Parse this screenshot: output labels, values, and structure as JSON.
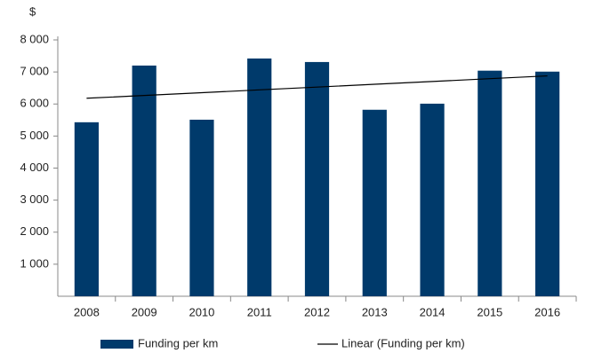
{
  "chart_data": {
    "type": "bar",
    "y_label": "$",
    "categories": [
      "2008",
      "2009",
      "2010",
      "2011",
      "2012",
      "2013",
      "2014",
      "2015",
      "2016"
    ],
    "series": [
      {
        "name": "Funding per km",
        "color": "#003a6b",
        "values": [
          5430,
          7200,
          5510,
          7420,
          7310,
          5820,
          6010,
          7040,
          7010
        ]
      },
      {
        "name": "Linear (Funding per km)",
        "color": "#000000",
        "type": "line",
        "values": [
          6179,
          6266,
          6353,
          6441,
          6528,
          6615,
          6703,
          6790,
          6877
        ]
      }
    ],
    "ylim": [
      0,
      8000
    ],
    "yticks": [
      {
        "value": 1000,
        "label": "1 000"
      },
      {
        "value": 2000,
        "label": "2 000"
      },
      {
        "value": 3000,
        "label": "3 000"
      },
      {
        "value": 4000,
        "label": "4 000"
      },
      {
        "value": 5000,
        "label": "5 000"
      },
      {
        "value": 6000,
        "label": "6 000"
      },
      {
        "value": 7000,
        "label": "7 000"
      },
      {
        "value": 8000,
        "label": "8 000"
      }
    ],
    "grid": false,
    "legend": "bottom"
  }
}
